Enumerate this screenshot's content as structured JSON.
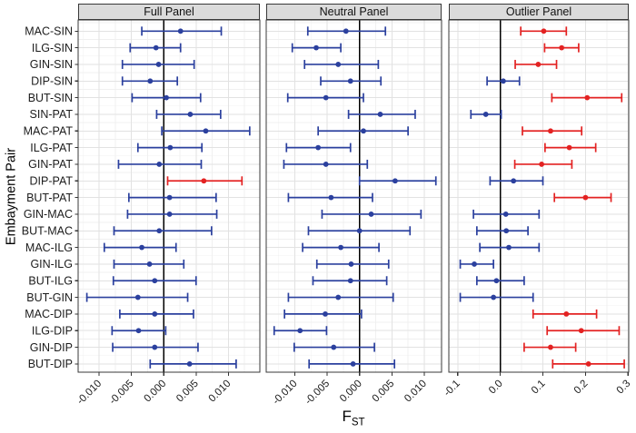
{
  "chart_data": {
    "type": "forest-errorbar",
    "title": "",
    "ylabel": "Embayment Pair",
    "xlabel_main": "F",
    "xlabel_sub": "ST",
    "legend_position": "none",
    "grid": "on",
    "categories": [
      "MAC-SIN",
      "ILG-SIN",
      "GIN-SIN",
      "DIP-SIN",
      "BUT-SIN",
      "SIN-PAT",
      "MAC-PAT",
      "ILG-PAT",
      "GIN-PAT",
      "DIP-PAT",
      "BUT-PAT",
      "GIN-MAC",
      "BUT-MAC",
      "MAC-ILG",
      "GIN-ILG",
      "BUT-ILG",
      "BUT-GIN",
      "MAC-DIP",
      "ILG-DIP",
      "GIN-DIP",
      "BUT-DIP"
    ],
    "colors": {
      "blue": "#2B409E",
      "red": "#E32222"
    },
    "panels": [
      {
        "title": "Full Panel",
        "xlim": [
          -0.01325,
          0.01487
        ],
        "ticks": [
          -0.01,
          -0.005,
          0.0,
          0.005,
          0.01
        ],
        "tick_labels": [
          "-0.010",
          "-0.005",
          "0.000",
          "0.005",
          "0.010"
        ],
        "series": [
          {
            "pair": "MAC-SIN",
            "est": 0.0026,
            "lo": -0.0034,
            "hi": 0.0089,
            "color": "blue"
          },
          {
            "pair": "ILG-SIN",
            "est": -0.0012,
            "lo": -0.0052,
            "hi": 0.0026,
            "color": "blue"
          },
          {
            "pair": "GIN-SIN",
            "est": -0.0008,
            "lo": -0.0064,
            "hi": 0.0047,
            "color": "blue"
          },
          {
            "pair": "DIP-SIN",
            "est": -0.0021,
            "lo": -0.0064,
            "hi": 0.0021,
            "color": "blue"
          },
          {
            "pair": "BUT-SIN",
            "est": 0.0004,
            "lo": -0.0049,
            "hi": 0.0057,
            "color": "blue"
          },
          {
            "pair": "SIN-PAT",
            "est": 0.0041,
            "lo": -0.0011,
            "hi": 0.0088,
            "color": "blue"
          },
          {
            "pair": "MAC-PAT",
            "est": 0.0065,
            "lo": -0.0003,
            "hi": 0.0133,
            "color": "blue"
          },
          {
            "pair": "ILG-PAT",
            "est": 0.001,
            "lo": -0.004,
            "hi": 0.0059,
            "color": "blue"
          },
          {
            "pair": "GIN-PAT",
            "est": -0.0007,
            "lo": -0.007,
            "hi": 0.0058,
            "color": "blue"
          },
          {
            "pair": "DIP-PAT",
            "est": 0.0062,
            "lo": 0.0006,
            "hi": 0.0121,
            "color": "red"
          },
          {
            "pair": "BUT-PAT",
            "est": 0.0009,
            "lo": -0.0054,
            "hi": 0.0081,
            "color": "blue"
          },
          {
            "pair": "GIN-MAC",
            "est": 0.0009,
            "lo": -0.0056,
            "hi": 0.0082,
            "color": "blue"
          },
          {
            "pair": "BUT-MAC",
            "est": -0.0007,
            "lo": -0.0077,
            "hi": 0.0074,
            "color": "blue"
          },
          {
            "pair": "MAC-ILG",
            "est": -0.0034,
            "lo": -0.0092,
            "hi": 0.0019,
            "color": "blue"
          },
          {
            "pair": "GIN-ILG",
            "est": -0.0022,
            "lo": -0.0077,
            "hi": 0.0031,
            "color": "blue"
          },
          {
            "pair": "BUT-ILG",
            "est": -0.0014,
            "lo": -0.0078,
            "hi": 0.005,
            "color": "blue"
          },
          {
            "pair": "BUT-GIN",
            "est": -0.004,
            "lo": -0.0119,
            "hi": 0.0037,
            "color": "blue"
          },
          {
            "pair": "MAC-DIP",
            "est": -0.0014,
            "lo": -0.0068,
            "hi": 0.0046,
            "color": "blue"
          },
          {
            "pair": "ILG-DIP",
            "est": -0.0039,
            "lo": -0.008,
            "hi": 0.0003,
            "color": "blue"
          },
          {
            "pair": "GIN-DIP",
            "est": -0.0014,
            "lo": -0.0079,
            "hi": 0.0053,
            "color": "blue"
          },
          {
            "pair": "BUT-DIP",
            "est": 0.004,
            "lo": -0.0021,
            "hi": 0.0112,
            "color": "blue"
          }
        ]
      },
      {
        "title": "Neutral Panel",
        "xlim": [
          -0.01443,
          0.01268
        ],
        "ticks": [
          -0.01,
          -0.005,
          0.0,
          0.005,
          0.01
        ],
        "tick_labels": [
          "-0.010",
          "-0.005",
          "0.000",
          "0.005",
          "0.010"
        ],
        "series": [
          {
            "pair": "MAC-SIN",
            "est": -0.0021,
            "lo": -0.008,
            "hi": 0.004,
            "color": "blue"
          },
          {
            "pair": "ILG-SIN",
            "est": -0.0067,
            "lo": -0.0104,
            "hi": -0.0029,
            "color": "blue"
          },
          {
            "pair": "GIN-SIN",
            "est": -0.0033,
            "lo": -0.0085,
            "hi": 0.0029,
            "color": "blue"
          },
          {
            "pair": "DIP-SIN",
            "est": -0.0014,
            "lo": -0.006,
            "hi": 0.0033,
            "color": "blue"
          },
          {
            "pair": "BUT-SIN",
            "est": -0.0052,
            "lo": -0.0111,
            "hi": 0.0006,
            "color": "blue"
          },
          {
            "pair": "SIN-PAT",
            "est": 0.0032,
            "lo": -0.0017,
            "hi": 0.0086,
            "color": "blue"
          },
          {
            "pair": "MAC-PAT",
            "est": 0.0006,
            "lo": -0.0064,
            "hi": 0.0075,
            "color": "blue"
          },
          {
            "pair": "ILG-PAT",
            "est": -0.0064,
            "lo": -0.0113,
            "hi": -0.0014,
            "color": "blue"
          },
          {
            "pair": "GIN-PAT",
            "est": -0.0052,
            "lo": -0.0117,
            "hi": 0.0012,
            "color": "blue"
          },
          {
            "pair": "DIP-PAT",
            "est": 0.0055,
            "lo": 0.0,
            "hi": 0.0118,
            "color": "blue"
          },
          {
            "pair": "BUT-PAT",
            "est": -0.0044,
            "lo": -0.011,
            "hi": 0.002,
            "color": "blue"
          },
          {
            "pair": "GIN-MAC",
            "est": 0.0018,
            "lo": -0.0058,
            "hi": 0.0095,
            "color": "blue"
          },
          {
            "pair": "BUT-MAC",
            "est": 0.0,
            "lo": -0.0079,
            "hi": 0.0078,
            "color": "blue"
          },
          {
            "pair": "MAC-ILG",
            "est": -0.0029,
            "lo": -0.0088,
            "hi": 0.003,
            "color": "blue"
          },
          {
            "pair": "GIN-ILG",
            "est": -0.0013,
            "lo": -0.0066,
            "hi": 0.0045,
            "color": "blue"
          },
          {
            "pair": "BUT-ILG",
            "est": -0.0014,
            "lo": -0.0072,
            "hi": 0.0042,
            "color": "blue"
          },
          {
            "pair": "BUT-GIN",
            "est": -0.0033,
            "lo": -0.011,
            "hi": 0.0052,
            "color": "blue"
          },
          {
            "pair": "MAC-DIP",
            "est": -0.0053,
            "lo": -0.0116,
            "hi": 0.0003,
            "color": "blue"
          },
          {
            "pair": "ILG-DIP",
            "est": -0.0092,
            "lo": -0.0132,
            "hi": -0.0051,
            "color": "blue"
          },
          {
            "pair": "GIN-DIP",
            "est": -0.004,
            "lo": -0.0101,
            "hi": 0.0023,
            "color": "blue"
          },
          {
            "pair": "BUT-DIP",
            "est": -0.001,
            "lo": -0.0078,
            "hi": 0.0054,
            "color": "blue"
          }
        ]
      },
      {
        "title": "Outlier Panel",
        "xlim": [
          -0.1208,
          0.3015
        ],
        "ticks": [
          -0.1,
          0.0,
          0.1,
          0.2,
          0.3
        ],
        "tick_labels": [
          "-0.1",
          "0.0",
          "0.1",
          "0.2",
          "0.3"
        ],
        "series": [
          {
            "pair": "MAC-SIN",
            "est": 0.102,
            "lo": 0.048,
            "hi": 0.155,
            "color": "red"
          },
          {
            "pair": "ILG-SIN",
            "est": 0.144,
            "lo": 0.104,
            "hi": 0.184,
            "color": "red"
          },
          {
            "pair": "GIN-SIN",
            "est": 0.089,
            "lo": 0.035,
            "hi": 0.132,
            "color": "red"
          },
          {
            "pair": "DIP-SIN",
            "est": 0.007,
            "lo": -0.031,
            "hi": 0.045,
            "color": "blue"
          },
          {
            "pair": "BUT-SIN",
            "est": 0.204,
            "lo": 0.121,
            "hi": 0.285,
            "color": "red"
          },
          {
            "pair": "SIN-PAT",
            "est": -0.034,
            "lo": -0.069,
            "hi": 0.002,
            "color": "blue"
          },
          {
            "pair": "MAC-PAT",
            "est": 0.118,
            "lo": 0.052,
            "hi": 0.191,
            "color": "red"
          },
          {
            "pair": "ILG-PAT",
            "est": 0.162,
            "lo": 0.105,
            "hi": 0.224,
            "color": "red"
          },
          {
            "pair": "GIN-PAT",
            "est": 0.097,
            "lo": 0.034,
            "hi": 0.168,
            "color": "red"
          },
          {
            "pair": "DIP-PAT",
            "est": 0.031,
            "lo": -0.024,
            "hi": 0.1,
            "color": "blue"
          },
          {
            "pair": "BUT-PAT",
            "est": 0.2,
            "lo": 0.127,
            "hi": 0.26,
            "color": "red"
          },
          {
            "pair": "GIN-MAC",
            "est": 0.013,
            "lo": -0.063,
            "hi": 0.091,
            "color": "blue"
          },
          {
            "pair": "BUT-MAC",
            "est": 0.014,
            "lo": -0.055,
            "hi": 0.065,
            "color": "blue"
          },
          {
            "pair": "MAC-ILG",
            "est": 0.02,
            "lo": -0.048,
            "hi": 0.091,
            "color": "blue"
          },
          {
            "pair": "GIN-ILG",
            "est": -0.061,
            "lo": -0.094,
            "hi": -0.016,
            "color": "blue"
          },
          {
            "pair": "BUT-ILG",
            "est": -0.009,
            "lo": -0.055,
            "hi": 0.056,
            "color": "blue"
          },
          {
            "pair": "BUT-GIN",
            "est": -0.016,
            "lo": -0.094,
            "hi": 0.077,
            "color": "blue"
          },
          {
            "pair": "MAC-DIP",
            "est": 0.155,
            "lo": 0.077,
            "hi": 0.226,
            "color": "red"
          },
          {
            "pair": "ILG-DIP",
            "est": 0.19,
            "lo": 0.11,
            "hi": 0.279,
            "color": "red"
          },
          {
            "pair": "GIN-DIP",
            "est": 0.118,
            "lo": 0.056,
            "hi": 0.177,
            "color": "red"
          },
          {
            "pair": "BUT-DIP",
            "est": 0.207,
            "lo": 0.123,
            "hi": 0.291,
            "color": "red"
          }
        ]
      }
    ]
  }
}
